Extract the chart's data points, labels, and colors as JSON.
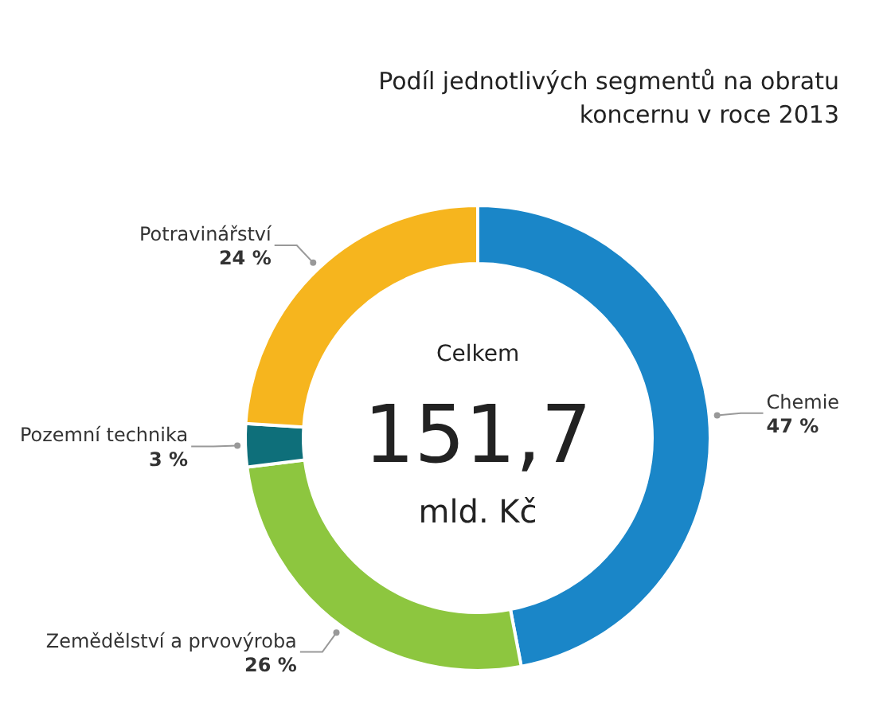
{
  "chart_data": {
    "type": "donut",
    "title": "Podíl jednotlivých segmentů na obratu koncernu v roce 2013",
    "categories": [
      "Chemie",
      "Zemědělství a prvovýroba",
      "Pozemní technika",
      "Potravinářství"
    ],
    "values": [
      47,
      26,
      3,
      24
    ],
    "colors": [
      "#1a86c8",
      "#8dc63f",
      "#0e6f7a",
      "#f6b51e"
    ],
    "value_labels": [
      "47 %",
      "26 %",
      "3 %",
      "24 %"
    ],
    "annotations": [
      "Celkem",
      "151,7",
      "mld. Kč"
    ],
    "legend": false
  }
}
